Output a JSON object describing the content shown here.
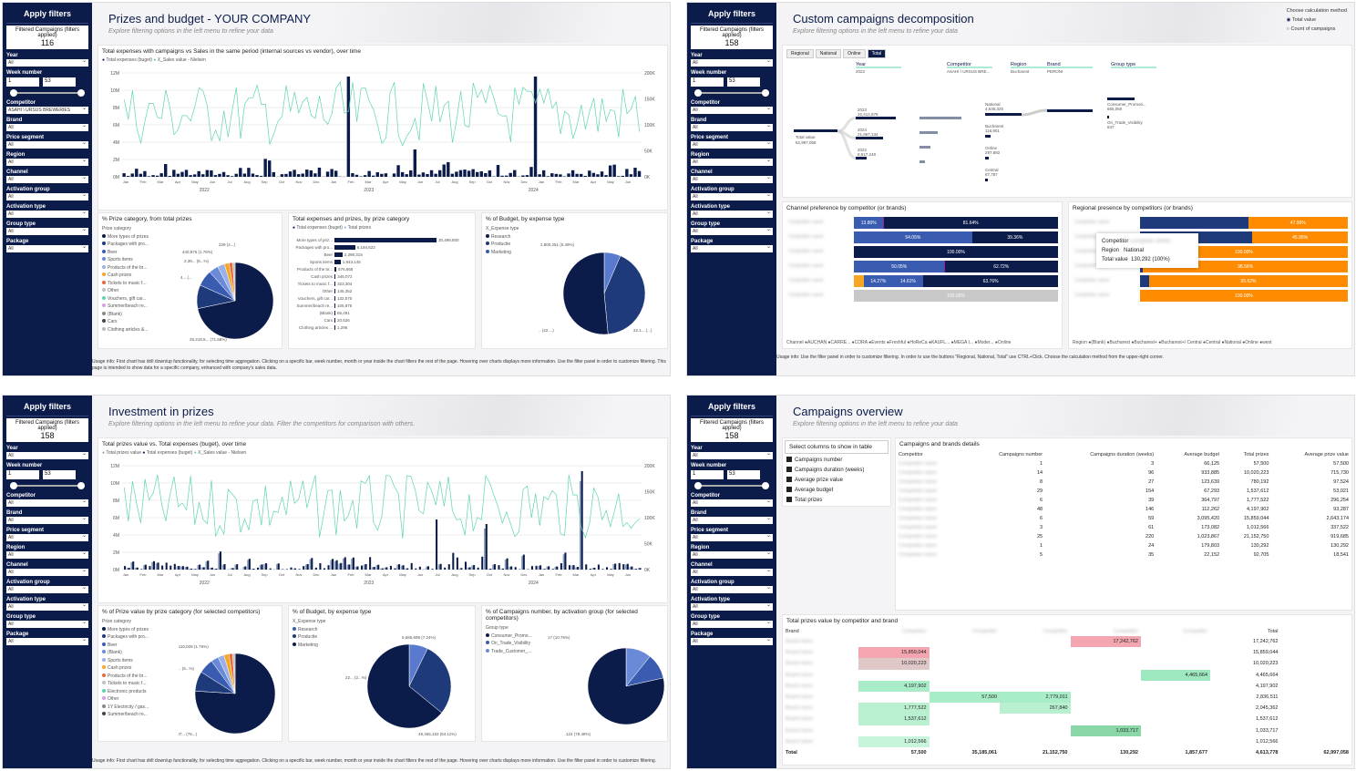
{
  "sidebar_common": {
    "apply": "Apply filters",
    "filtered_label": "Filtered Campaigns (filters applied)",
    "year": "Year",
    "week": "Week number",
    "week_from": "1",
    "week_to": "53",
    "competitor": "Competitor",
    "brand": "Brand",
    "price_segment": "Price segment",
    "region": "Region",
    "channel": "Channel",
    "activation_group": "Activation group",
    "activation_type": "Activation type",
    "group_type": "Group type",
    "package": "Package",
    "all": "All",
    "competitor_value": "ASAHI \\ URSUS BREWERIES"
  },
  "p1": {
    "count": "116",
    "title": "Prizes and budget -  YOUR COMPANY",
    "subtitle": "Explore filtering options in the left menu to refine your data",
    "chart1_title": "Total expenses with campaigns vs Sales in the same period (internal sources vs vendor), over time",
    "legend1": "Total expenses (buget)",
    "legend2": "X_Sales value - Nielsen",
    "y_left": [
      "12M",
      "10M",
      "8M",
      "6M",
      "4M",
      "2M",
      "0M"
    ],
    "y_right": [
      "200K",
      "150K",
      "100K",
      "50K",
      "0K"
    ],
    "years": [
      "2022",
      "2023",
      "2024"
    ],
    "pie1_title": "% Prize category, from total prizes",
    "pie1_leg_title": "Prize category",
    "pie1_items": [
      "More types of prizes",
      "Packages with pro...",
      "Beer",
      "Sports items",
      "Products of the br...",
      "Cash prizes",
      "Tickets to music f...",
      "Other",
      "Vouchers, gift car...",
      "Summer/beach re...",
      "(Blank)",
      "Cars",
      "Clothing articles &..."
    ],
    "pie1_labels": [
      "440,876 (1.76%)",
      "2,39... (6...%)",
      "229 (4...)",
      "4... (...",
      "25,219,5... (71.68%)"
    ],
    "bar_title": "Total expenses and prizes, by prize category",
    "bar_leg1": "Total expenses (buget)",
    "bar_leg2": "Total prizes",
    "bars": [
      {
        "label": "More types of priz...",
        "value": "30,499,800"
      },
      {
        "label": "Packages with pro...",
        "value": "6,194,522"
      },
      {
        "label": "Beer",
        "value": "2,398,315"
      },
      {
        "label": "Sports items",
        "value": "1,843,145"
      },
      {
        "label": "Products of the br...",
        "value": "576,868"
      },
      {
        "label": "Cash prizes",
        "value": "346,072"
      },
      {
        "label": "Tickets to music f...",
        "value": "323,304"
      },
      {
        "label": "Other",
        "value": "145,352"
      },
      {
        "label": "Vouchers, gift car...",
        "value": "132,570"
      },
      {
        "label": "Summer/beach re...",
        "value": "105,875"
      },
      {
        "label": "(Blank)",
        "value": "65,491"
      },
      {
        "label": "Cars",
        "value": "20,526"
      },
      {
        "label": "Clothing articles ...",
        "value": "1,296"
      }
    ],
    "pie2_title": "% of Budget, by expense type",
    "pie2_leg_title": "X_Expense type",
    "pie2_items": [
      "Research",
      "Productie",
      "Marketing"
    ],
    "pie2_labels": [
      "2,800,251 (6.49%)",
      "18.2... (42....)",
      "22.1... (...)"
    ],
    "usage": "Usage info: First chart has drill down/up functionality, for selecting time aggregation. Clicking on a specific bar, week number, month or year inside the chart filters the rest of the page. Hovering over charts displays more information. Use the filter panel in order to customize filtering. This page is intended to show data for a specific company, enhanced with company's sales data."
  },
  "p2": {
    "count": "158",
    "title": "Custom campaigns decomposition",
    "subtitle": "Explore filtering options in the left menu to refine your data",
    "calc_title": "Choose calculation method",
    "calc_opt1": "Total value",
    "calc_opt2": "Count of campaigns",
    "tabs": [
      "Regional",
      "National",
      "Online",
      "Total"
    ],
    "decomp_cols": [
      {
        "name": "Year",
        "sub": "2022"
      },
      {
        "name": "Competitor",
        "sub": "ASAHI \\ URSUS BRE..."
      },
      {
        "name": "Region",
        "sub": "Bucharest"
      },
      {
        "name": "Brand",
        "sub": "PERONI"
      },
      {
        "name": "Group type",
        "sub": ""
      }
    ],
    "total_label": "Total value",
    "total_value": "62,997,058",
    "d_years": [
      {
        "y": "2023",
        "v": "32,412,676"
      },
      {
        "y": "2024",
        "v": "21,967,134"
      },
      {
        "y": "2022",
        "v": "8,617,248"
      }
    ],
    "d_region": [
      {
        "y": "National",
        "v": "4,635,325"
      },
      {
        "y": "Bucharest",
        "v": "116,901"
      },
      {
        "y": "Online",
        "v": "297,892"
      },
      {
        "y": "Central",
        "v": "87,787"
      }
    ],
    "d_group": [
      {
        "y": "Consumer_Promoti...",
        "v": "665,050"
      },
      {
        "y": "On_Trade_Visibility",
        "v": "847"
      }
    ],
    "chan_title": "Channel preference by competitor (or brands)",
    "chan_legend": "Channel  ●AUCHAN ●CARRE... ●CORA ●Events ●Freshful ●HoReCa ●KAUFL... ●MEGA I... ●Moder... ●Online",
    "chan_rows": [
      [
        "13.80%",
        "81.64%"
      ],
      [
        "54.05%",
        "39.36%"
      ],
      [
        "100.00%"
      ],
      [
        "50.05%",
        "62.72%"
      ],
      [
        "14.27%",
        "14.61%",
        "63.76%"
      ],
      [
        "100.00%"
      ]
    ],
    "reg_title": "Regional presence by competitors (or brands)",
    "reg_rows": [
      [
        "47.99%"
      ],
      [
        "45.95%"
      ],
      [
        "100.00%"
      ],
      [
        "98.56%"
      ],
      [
        "95.62%"
      ],
      [
        "100.00%"
      ]
    ],
    "reg_legend": "Region  ●(Blank) ●Bucharest ●Bucharest+ ●Bucharest+/ Central ●Central ●National ●Online ●west",
    "tooltip": {
      "competitor_label": "Competitor",
      "region_label": "Region",
      "region_value": "National",
      "total_label": "Total value",
      "total_value": "130,292 (100%)"
    },
    "usage": "Usage info: Use the filter panel in order to customize filtering. In order to use the buttons \"Regional, National, Total\" use CTRL+Click. Choose the calculation method from the upper-right corner."
  },
  "p3": {
    "count": "158",
    "title": "Investment in prizes",
    "subtitle": "Explore filtering options in the left menu to refine your data. Filter the competitors for comparison with others.",
    "chart1_title": "Total prizes value vs. Total expenses (buget), over time",
    "legend": [
      "Total prizes value",
      "Total expenses (buget)",
      "X_Sales value - Nielsen"
    ],
    "pie1_title": "% of Prize value by prize category (for selected competitors)",
    "pie1_leg_title": "Prize category",
    "pie1_items": [
      "More types of prizes",
      "Packages with pro...",
      "Beer",
      "(Blank)",
      "Sports items",
      "Cash prizes",
      "Products of the br...",
      "Tickets to music f...",
      "Electronic products",
      "Other",
      "1Y Electricity / gas...",
      "Summer/beach re..."
    ],
    "pie1_labels": [
      "1,110,028 (1.76%)",
      "4,16... (6...%)",
      "47,97... (76...)"
    ],
    "pie2_title": "% of Budget, by expense type",
    "pie2_leg_title": "X_Expense type",
    "pie2_items": [
      "Research",
      "Productie",
      "Marketing"
    ],
    "pie2_labels": [
      "5,585,699 (7.24%)",
      "22... (2...%)",
      "49,465,153 (64.11%)"
    ],
    "pie3_title": "% of Campaigns number, by activation group (for selected competitors)",
    "pie3_leg_title": "Group type",
    "pie3_items": [
      "Consumer_Promo...",
      "On_Trade_Visibility",
      "Trade_Customer_..."
    ],
    "pie3_labels": [
      "17 (10.76%)",
      "17 (10.76%)",
      "124 (78.48%)"
    ],
    "usage": "Usage info: First chart has drill down/up functionality, for selecting time aggregation. Clicking on a specific bar, week number, month or year inside the chart filters the rest of the page. Hovering over charts displays more information. Use the filter panel in order to customize filtering."
  },
  "p4": {
    "count": "158",
    "title": "Campaigns overview",
    "subtitle": "Explore filtering options in the left menu to refine your data",
    "col_select_title": "Select columns to show in table",
    "col_options": [
      "Campaigns number",
      "Campaigns duration (weeks)",
      "Average prize value",
      "Average budget",
      "Total prizes"
    ],
    "table_title": "Campaigns and brands details",
    "headers": [
      "Competitor",
      "Campaigns number",
      "Campaigns duration (weeks)",
      "Average budget",
      "Total prizes",
      "Average prize value"
    ],
    "rows": [
      [
        "",
        "1",
        "3",
        "66,125",
        "57,500",
        "57,500"
      ],
      [
        "",
        "14",
        "96",
        "933,885",
        "10,020,223",
        "715,730"
      ],
      [
        "",
        "8",
        "27",
        "123,639",
        "780,192",
        "97,524"
      ],
      [
        "",
        "29",
        "154",
        "67,293",
        "1,537,612",
        "53,021"
      ],
      [
        "",
        "6",
        "39",
        "364,797",
        "1,777,522",
        "296,254"
      ],
      [
        "",
        "48",
        "146",
        "112,262",
        "4,197,902",
        "93,287"
      ],
      [
        "",
        "6",
        "59",
        "3,095,420",
        "15,859,044",
        "2,643,174"
      ],
      [
        "",
        "3",
        "61",
        "173,082",
        "1,012,566",
        "337,522"
      ],
      [
        "",
        "25",
        "220",
        "1,023,867",
        "21,152,750",
        "919,685"
      ],
      [
        "",
        "1",
        "24",
        "179,803",
        "130,292",
        "130,292"
      ],
      [
        "",
        "5",
        "35",
        "22,152",
        "92,705",
        "18,541"
      ]
    ],
    "heat_title": "Total prizes value by competitor and brand",
    "heat_brand": "Brand",
    "heat_total": "Total",
    "heat_rows": [
      [
        "",
        "",
        "",
        "17,242,762",
        "",
        "17,242,762"
      ],
      [
        "15,859,044",
        "",
        "",
        "",
        "",
        "15,859,044"
      ],
      [
        "10,020,223",
        "",
        "",
        "",
        "",
        "10,020,223"
      ],
      [
        "",
        "",
        "",
        "",
        "4,465,664",
        "4,465,664"
      ],
      [
        "4,197,902",
        "",
        "",
        "",
        "",
        "4,197,902"
      ],
      [
        "",
        "57,500",
        "2,779,011",
        "",
        "",
        "2,836,511"
      ],
      [
        "1,777,522",
        "",
        "267,840",
        "",
        "",
        "2,045,362"
      ],
      [
        "1,537,612",
        "",
        "",
        "",
        "",
        "1,537,612"
      ],
      [
        "",
        "",
        "",
        "1,033,717",
        "",
        "1,033,717"
      ],
      [
        "1,012,566",
        "",
        "",
        "",
        "",
        "1,012,566"
      ]
    ],
    "heat_totals": [
      "Total",
      "57,500",
      "35,185,061",
      "21,152,750",
      "130,292",
      "1,857,677",
      "4,613,778",
      "62,997,058"
    ]
  }
}
